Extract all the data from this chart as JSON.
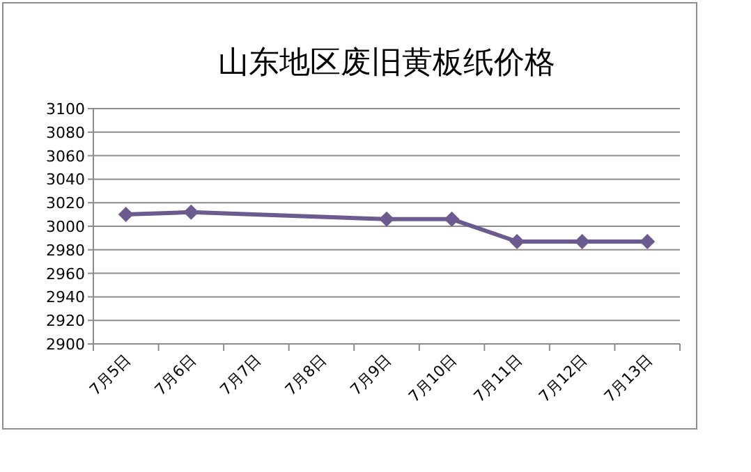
{
  "chart_data": {
    "type": "line",
    "title": "山东地区废旧黄板纸价格",
    "categories": [
      "7月5日",
      "7月6日",
      "7月7日",
      "7月8日",
      "7月9日",
      "7月10日",
      "7月11日",
      "7月12日",
      "7月13日"
    ],
    "series": [
      {
        "color": "#6b5b8e",
        "values": [
          3010,
          3012,
          null,
          null,
          3006,
          3006,
          2987,
          2987,
          2987
        ]
      }
    ],
    "ylim": [
      2900,
      3100
    ],
    "yticks": [
      2900,
      2920,
      2940,
      2960,
      2980,
      3000,
      3020,
      3040,
      3060,
      3080,
      3100
    ],
    "grid": "y",
    "marker": "diamond",
    "line_style": "solid"
  }
}
